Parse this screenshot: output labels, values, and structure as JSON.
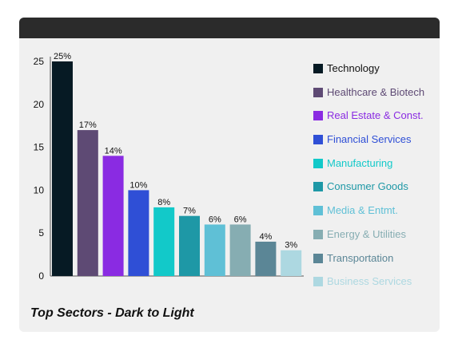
{
  "chart_data": {
    "type": "bar",
    "title": "Top Sectors - Dark to Light",
    "categories": [
      "Technology",
      "Healthcare & Biotech",
      "Real Estate & Const.",
      "Financial Services",
      "Manufacturing",
      "Consumer Goods",
      "Media & Entmt.",
      "Energy & Utilities",
      "Transportation",
      "Business Services"
    ],
    "values": [
      25,
      17,
      14,
      10,
      8,
      7,
      6,
      6,
      4,
      3
    ],
    "value_labels": [
      "25%",
      "17%",
      "14%",
      "10%",
      "8%",
      "7%",
      "6%",
      "6%",
      "4%",
      "3%"
    ],
    "colors": [
      "#061a24",
      "#5e4a74",
      "#8a2be2",
      "#2f4fd6",
      "#12c9c9",
      "#1e98a6",
      "#5fc0d6",
      "#86adb2",
      "#5b8696",
      "#add8e1"
    ],
    "ylim": [
      0,
      25
    ],
    "yticks": [
      0,
      5,
      10,
      15,
      20,
      25
    ],
    "xlabel": "",
    "ylabel": "",
    "grid": false,
    "legend_position": "right"
  }
}
